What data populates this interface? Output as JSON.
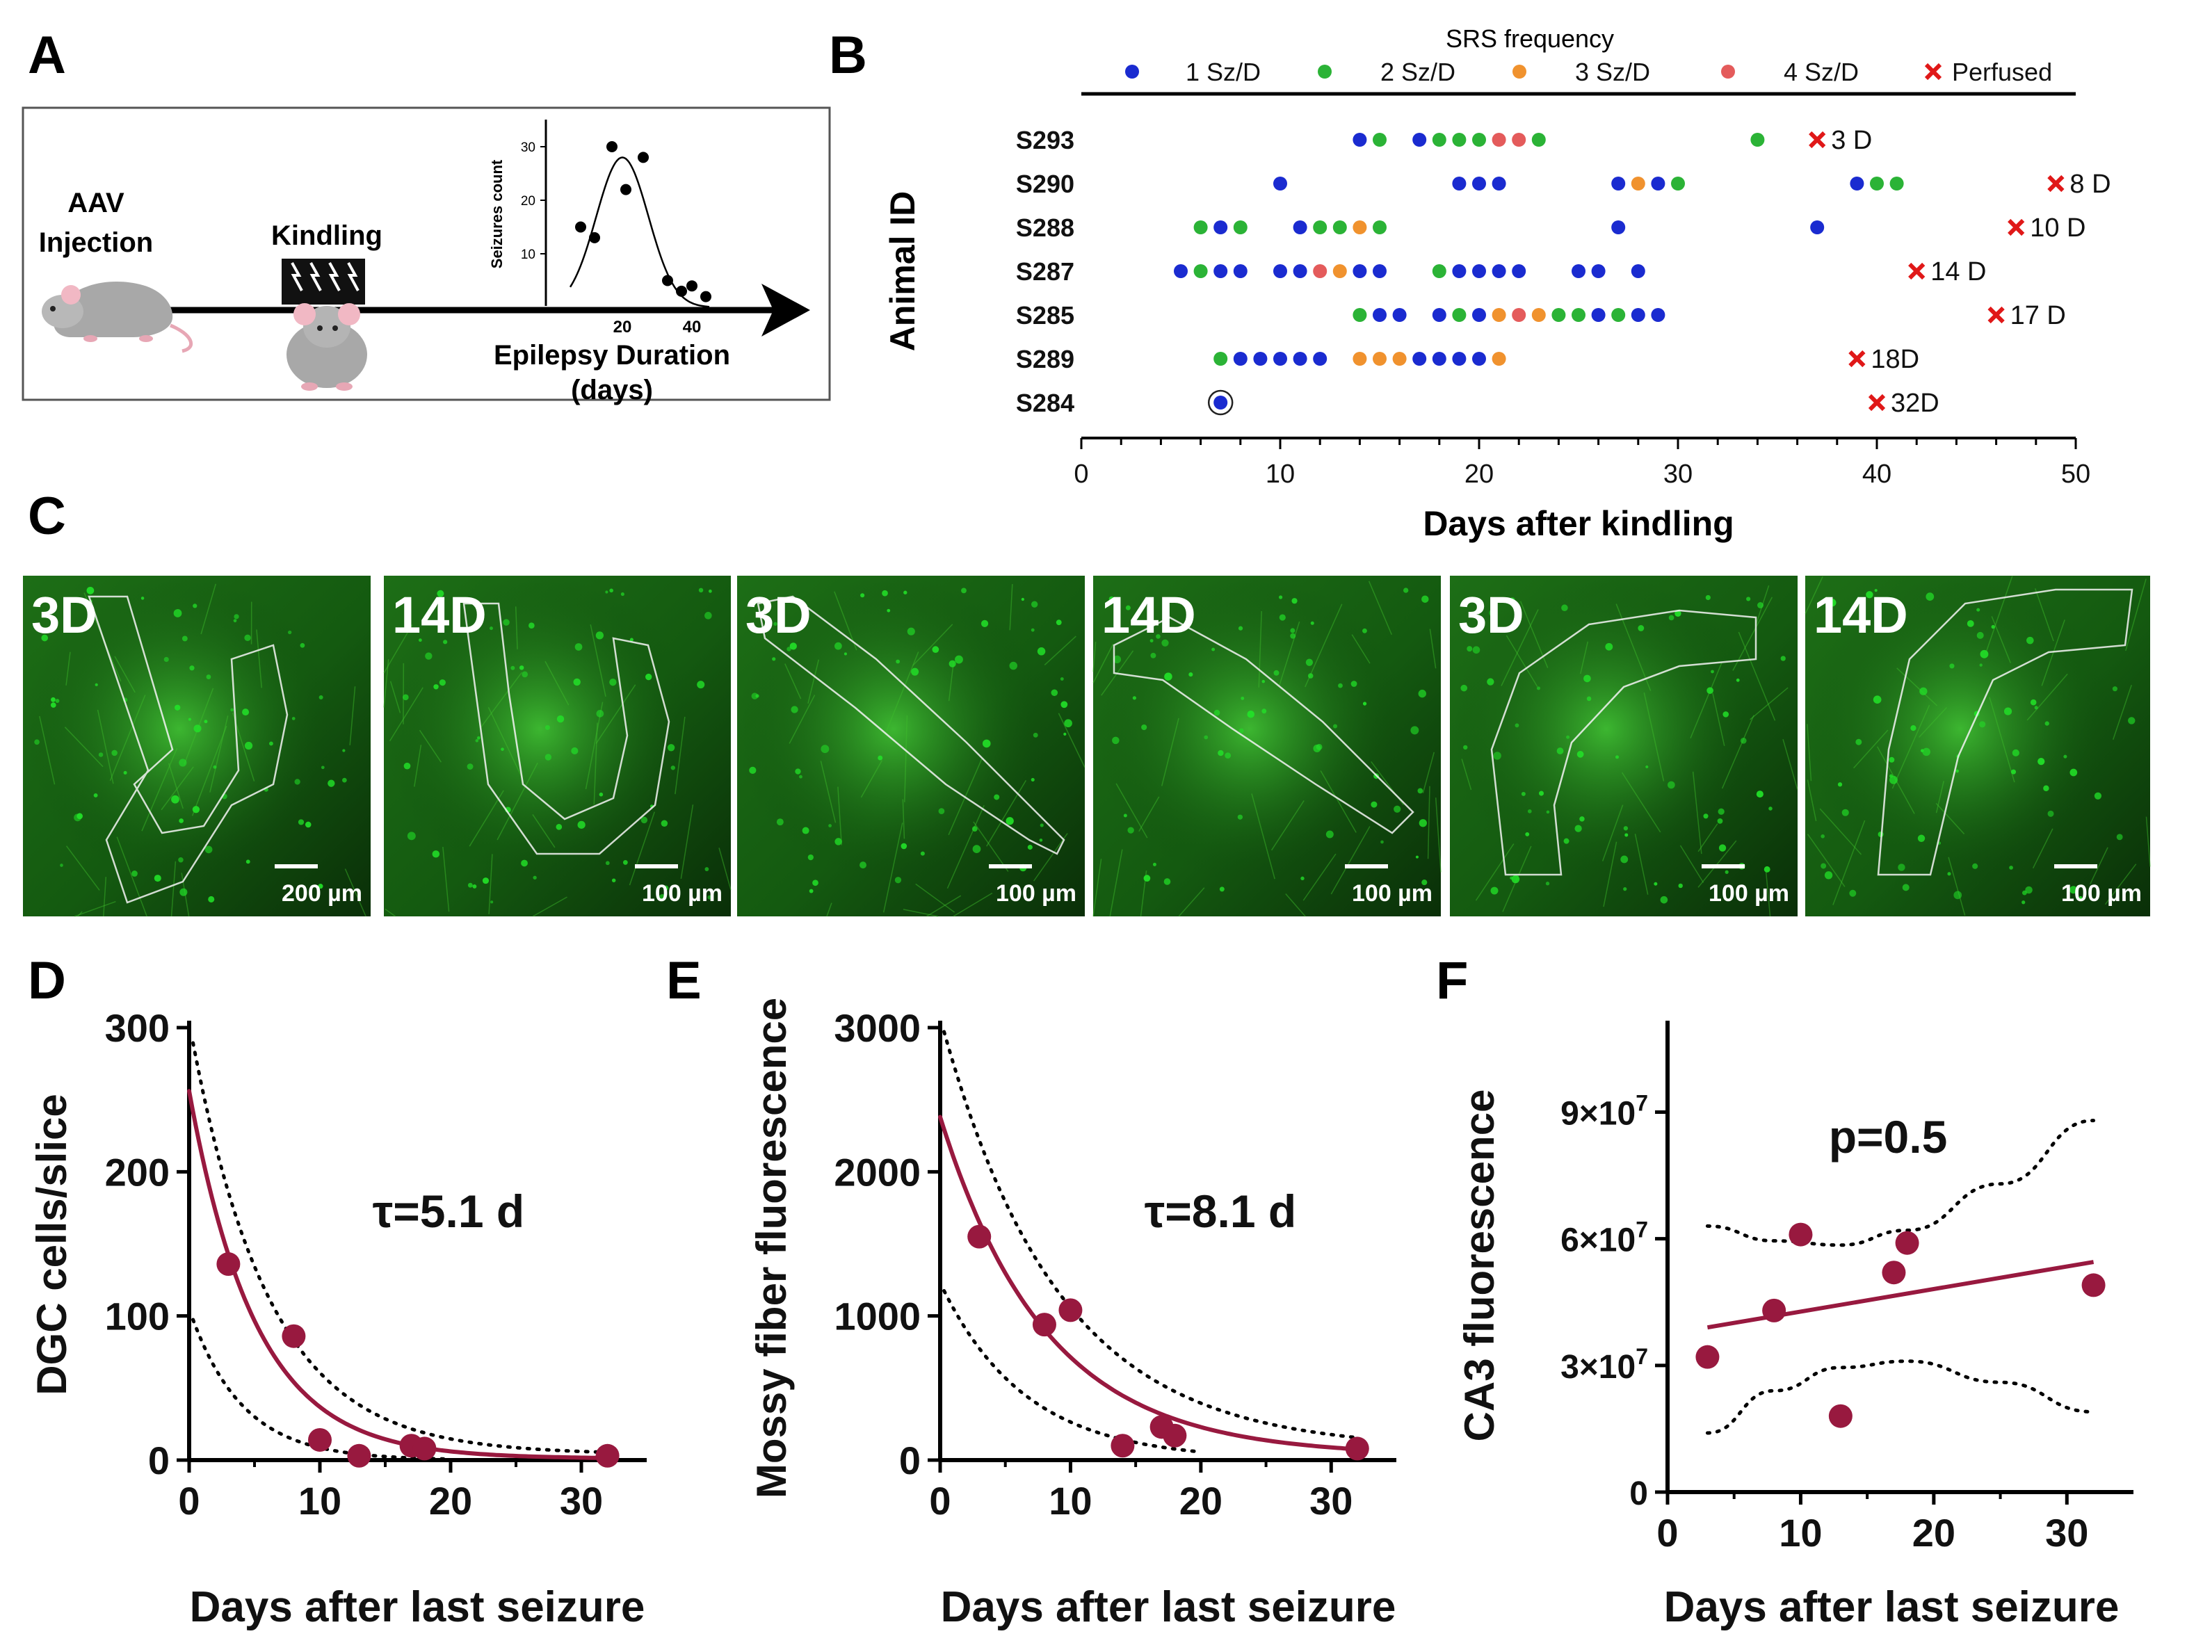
{
  "figure": {
    "panel_labels": [
      "A",
      "B",
      "C",
      "D",
      "E",
      "F"
    ]
  },
  "colors": {
    "blue": "#1a2bd0",
    "green": "#2bb336",
    "orange": "#f0922e",
    "red": "#e45b5b",
    "cross": "#e01818",
    "crimson": "#98193f",
    "micro_green": "#22e028"
  },
  "panelA": {
    "injection": [
      "AAV",
      "Injection"
    ],
    "kindling": "Kindling",
    "inset_ylabel": "Seizures count",
    "inset_yticks": [
      "10",
      "20",
      "30"
    ],
    "inset_xticks": [
      "20",
      "40"
    ],
    "xlabel": [
      "Epilepsy Duration",
      "(days)"
    ],
    "inset_points": [
      [
        8,
        15
      ],
      [
        12,
        13
      ],
      [
        17,
        30
      ],
      [
        21,
        22
      ],
      [
        26,
        28
      ],
      [
        33,
        5
      ],
      [
        37,
        3
      ],
      [
        40,
        4
      ],
      [
        44,
        2
      ]
    ]
  },
  "panelB": {
    "legend_title": "SRS frequency",
    "legend": [
      {
        "label": "1 Sz/D",
        "kind": "blue"
      },
      {
        "label": "2 Sz/D",
        "kind": "green"
      },
      {
        "label": "3 Sz/D",
        "kind": "orange"
      },
      {
        "label": "4 Sz/D",
        "kind": "red"
      },
      {
        "label": "Perfused",
        "kind": "cross"
      }
    ],
    "ylabel": "Animal ID",
    "xlabel": "Days after kindling"
  },
  "panelC": {
    "images": [
      {
        "age": "3D",
        "scale": "200 µm"
      },
      {
        "age": "14D",
        "scale": "100 µm"
      },
      {
        "age": "3D",
        "scale": "100 µm"
      },
      {
        "age": "14D",
        "scale": "100 µm"
      },
      {
        "age": "3D",
        "scale": "100 µm"
      },
      {
        "age": "14D",
        "scale": "100 µm"
      }
    ]
  },
  "chart_data": [
    {
      "panel": "B",
      "type": "scatter",
      "title": "SRS frequency",
      "xlabel": "Days after kindling",
      "ylabel": "Animal ID",
      "xlim": [
        0,
        50
      ],
      "xticks": [
        0,
        10,
        20,
        30,
        40,
        50
      ],
      "rows": [
        {
          "id": "S293",
          "perfused_day": 37,
          "perfused_label": "3 D",
          "seizures": [
            [
              14,
              1
            ],
            [
              15,
              2
            ],
            [
              17,
              1
            ],
            [
              18,
              2
            ],
            [
              19,
              2
            ],
            [
              20,
              2
            ],
            [
              21,
              4
            ],
            [
              22,
              4
            ],
            [
              23,
              2
            ],
            [
              34,
              2
            ]
          ]
        },
        {
          "id": "S290",
          "perfused_day": 49,
          "perfused_label": "8 D",
          "seizures": [
            [
              10,
              1
            ],
            [
              19,
              1
            ],
            [
              20,
              1
            ],
            [
              21,
              1
            ],
            [
              27,
              1
            ],
            [
              28,
              3
            ],
            [
              29,
              1
            ],
            [
              30,
              2
            ],
            [
              39,
              1
            ],
            [
              40,
              2
            ],
            [
              41,
              2
            ]
          ]
        },
        {
          "id": "S288",
          "perfused_day": 47,
          "perfused_label": "10 D",
          "seizures": [
            [
              6,
              2
            ],
            [
              7,
              1
            ],
            [
              8,
              2
            ],
            [
              11,
              1
            ],
            [
              12,
              2
            ],
            [
              13,
              2
            ],
            [
              14,
              3
            ],
            [
              15,
              2
            ],
            [
              27,
              1
            ],
            [
              37,
              1
            ]
          ]
        },
        {
          "id": "S287",
          "perfused_day": 42,
          "perfused_label": "14 D",
          "seizures": [
            [
              5,
              1
            ],
            [
              6,
              2
            ],
            [
              7,
              1
            ],
            [
              8,
              1
            ],
            [
              10,
              1
            ],
            [
              11,
              1
            ],
            [
              12,
              4
            ],
            [
              13,
              3
            ],
            [
              14,
              1
            ],
            [
              15,
              1
            ],
            [
              18,
              2
            ],
            [
              19,
              1
            ],
            [
              20,
              1
            ],
            [
              21,
              1
            ],
            [
              22,
              1
            ],
            [
              25,
              1
            ],
            [
              26,
              1
            ],
            [
              28,
              1
            ]
          ]
        },
        {
          "id": "S285",
          "perfused_day": 46,
          "perfused_label": "17 D",
          "seizures": [
            [
              14,
              2
            ],
            [
              15,
              1
            ],
            [
              16,
              1
            ],
            [
              18,
              1
            ],
            [
              19,
              2
            ],
            [
              20,
              1
            ],
            [
              21,
              3
            ],
            [
              22,
              4
            ],
            [
              23,
              3
            ],
            [
              24,
              2
            ],
            [
              25,
              2
            ],
            [
              26,
              1
            ],
            [
              27,
              2
            ],
            [
              28,
              1
            ],
            [
              29,
              1
            ]
          ]
        },
        {
          "id": "S289",
          "perfused_day": 39,
          "perfused_label": "18D",
          "seizures": [
            [
              7,
              2
            ],
            [
              8,
              1
            ],
            [
              9,
              1
            ],
            [
              10,
              1
            ],
            [
              11,
              1
            ],
            [
              12,
              1
            ],
            [
              14,
              3
            ],
            [
              15,
              3
            ],
            [
              16,
              3
            ],
            [
              17,
              1
            ],
            [
              18,
              1
            ],
            [
              19,
              1
            ],
            [
              20,
              1
            ],
            [
              21,
              3
            ]
          ]
        },
        {
          "id": "S284",
          "perfused_day": 40,
          "perfused_label": "32D",
          "seizures": [
            [
              7,
              1
            ]
          ]
        }
      ]
    },
    {
      "panel": "D",
      "type": "scatter",
      "xlabel": "Days after last seizure",
      "ylabel": "DGC cells/slice",
      "annotation": "τ=5.1 d",
      "xlim": [
        0,
        35
      ],
      "ylim": [
        0,
        300
      ],
      "xticks": [
        0,
        10,
        20,
        30
      ],
      "yticks": [
        0,
        100,
        200,
        300
      ],
      "points": [
        [
          3,
          136
        ],
        [
          8,
          86
        ],
        [
          10,
          14
        ],
        [
          13,
          3
        ],
        [
          17,
          10
        ],
        [
          18,
          8
        ],
        [
          32,
          3
        ]
      ],
      "fit": {
        "A": 255,
        "tau": 5.1,
        "c": 1
      },
      "ci_upper": {
        "A": 300,
        "tau": 6.0,
        "c": 4
      },
      "ci_lower": {
        "A": 105,
        "tau": 4.0,
        "c": 0
      }
    },
    {
      "panel": "E",
      "type": "scatter",
      "xlabel": "Days after last seizure",
      "ylabel": "Mossy fiber  fluorescence",
      "annotation": "τ=8.1 d",
      "xlim": [
        0,
        35
      ],
      "ylim": [
        0,
        3000
      ],
      "xticks": [
        0,
        10,
        20,
        30
      ],
      "yticks": [
        0,
        1000,
        2000,
        3000
      ],
      "points": [
        [
          3,
          1550
        ],
        [
          8,
          940
        ],
        [
          10,
          1040
        ],
        [
          14,
          100
        ],
        [
          17,
          230
        ],
        [
          18,
          170
        ],
        [
          32,
          80
        ]
      ],
      "fit": {
        "A": 2350,
        "tau": 8.1,
        "c": 30
      },
      "ci_upper": {
        "A": 3000,
        "tau": 9.0,
        "c": 70
      },
      "ci_lower": {
        "A": 1230,
        "tau": 6.5,
        "c": 0
      }
    },
    {
      "panel": "F",
      "type": "scatter",
      "xlabel": "Days after last seizure",
      "ylabel": "CA3 fluorescence",
      "annotation": "p=0.5",
      "xlim": [
        0,
        35
      ],
      "ylim": [
        0,
        110000000
      ],
      "xticks": [
        0,
        10,
        20,
        30
      ],
      "yticks": [
        0,
        30000000,
        60000000,
        90000000
      ],
      "ytick_mantissa": [
        "0",
        "3×10",
        "6×10",
        "9×10"
      ],
      "ytick_exp": [
        "",
        "7",
        "7",
        "7"
      ],
      "points": [
        [
          3,
          32000000
        ],
        [
          8,
          43000000
        ],
        [
          10,
          61000000
        ],
        [
          13,
          18000000
        ],
        [
          17,
          52000000
        ],
        [
          18,
          59000000
        ],
        [
          32,
          49000000
        ]
      ],
      "line": [
        [
          3,
          39000000
        ],
        [
          32,
          54500000
        ]
      ],
      "ci_upper": [
        [
          3,
          63000000
        ],
        [
          8,
          59500000
        ],
        [
          13,
          58500000
        ],
        [
          18,
          62000000
        ],
        [
          25,
          73000000
        ],
        [
          32,
          88000000
        ]
      ],
      "ci_lower": [
        [
          3,
          14000000
        ],
        [
          8,
          24000000
        ],
        [
          13,
          29500000
        ],
        [
          18,
          31000000
        ],
        [
          25,
          26000000
        ],
        [
          32,
          19000000
        ]
      ]
    }
  ]
}
